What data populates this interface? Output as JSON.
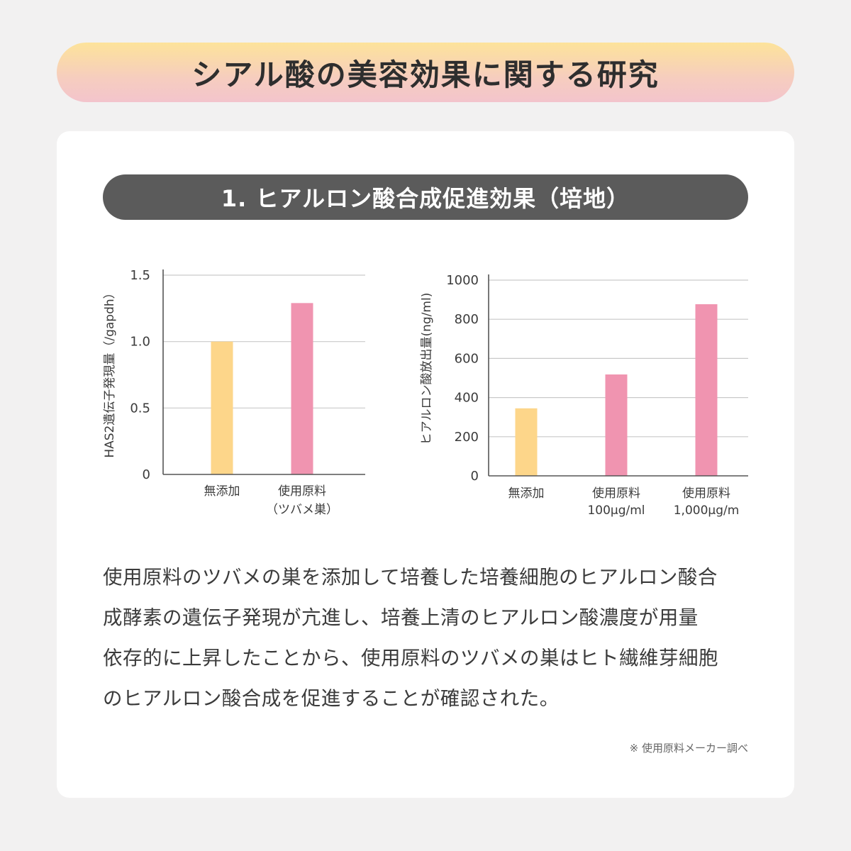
{
  "header": {
    "title": "シアル酸の美容効果に関する研究"
  },
  "section": {
    "title": "1. ヒアルロン酸合成促進効果（培地）"
  },
  "chart_data": [
    {
      "type": "bar",
      "ylabel": "HAS2遺伝子発現量（/gapdh）",
      "ylim": [
        0,
        1.5
      ],
      "yticks": [
        "0",
        "0.5",
        "1.0",
        "1.5"
      ],
      "grid": true,
      "categories": [
        {
          "line1": "無添加",
          "line2": ""
        },
        {
          "line1": "使用原料",
          "line2": "（ツバメ巣）"
        }
      ],
      "values": [
        1.0,
        1.29
      ],
      "colors": [
        "#fdd68a",
        "#f094b0"
      ]
    },
    {
      "type": "bar",
      "ylabel": "ヒアルロン酸放出量(ng/ml)",
      "ylim": [
        0,
        1000
      ],
      "yticks": [
        "0",
        "200",
        "400",
        "600",
        "800",
        "1000"
      ],
      "grid": true,
      "categories": [
        {
          "line1": "無添加",
          "line2": ""
        },
        {
          "line1": "使用原料",
          "line2": "100μg/ml"
        },
        {
          "line1": "使用原料",
          "line2": "1,000μg/m"
        }
      ],
      "values": [
        345,
        518,
        877
      ],
      "colors": [
        "#fdd68a",
        "#f094b0",
        "#f094b0"
      ]
    }
  ],
  "description": {
    "lines": [
      "使用原料のツバメの巣を添加して培養した培養細胞のヒアルロン酸合",
      "成酵素の遺伝子発現が亢進し、培養上清のヒアルロン酸濃度が用量",
      "依存的に上昇したことから、使用原料のツバメの巣はヒト繊維芽細胞",
      "のヒアルロン酸合成を促進することが確認された。"
    ]
  },
  "footer": {
    "source": "※ 使用原料メーカー調べ"
  }
}
